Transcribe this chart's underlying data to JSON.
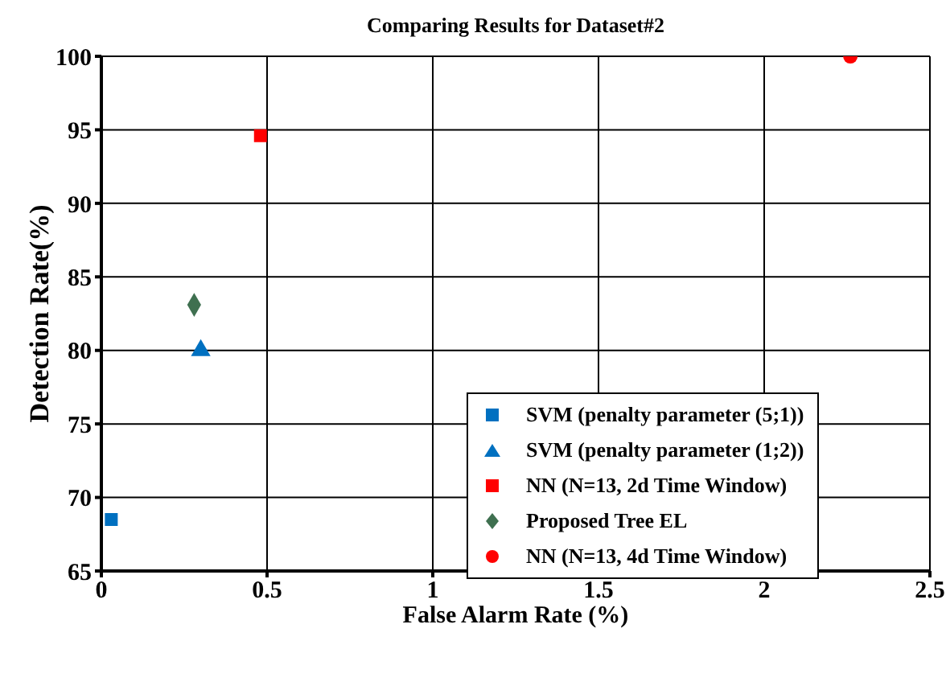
{
  "chart_data": {
    "type": "scatter",
    "title": "Comparing Results for Dataset#2",
    "xlabel": "False Alarm Rate (%)",
    "ylabel": "Detection Rate(%)",
    "xlim": [
      0,
      2.5
    ],
    "xticks": [
      0,
      0.5,
      1,
      1.5,
      2,
      2.5
    ],
    "ylim": [
      65,
      100
    ],
    "yticks": [
      65,
      70,
      75,
      80,
      85,
      90,
      95,
      100
    ],
    "grid": true,
    "legend": "bottom right",
    "series": [
      {
        "name": "SVM (penalty parameter (5;1))",
        "color": "#0070c0",
        "marker": "square",
        "x": [
          0.03
        ],
        "values": [
          68.5
        ]
      },
      {
        "name": "SVM (penalty parameter (1;2))",
        "color": "#0070c0",
        "marker": "triangle",
        "x": [
          0.3
        ],
        "values": [
          80
        ]
      },
      {
        "name": "NN (N=13, 2d Time Window)",
        "color": "#ff0000",
        "marker": "square",
        "x": [
          0.48
        ],
        "values": [
          94.6
        ]
      },
      {
        "name": "Proposed Tree EL",
        "color": "#3f7050",
        "marker": "diamond",
        "x": [
          0.28
        ],
        "values": [
          83.1
        ]
      },
      {
        "name": "NN (N=13, 4d Time Window)",
        "color": "#ff0000",
        "marker": "circle",
        "x": [
          2.26
        ],
        "values": [
          100
        ]
      }
    ]
  }
}
